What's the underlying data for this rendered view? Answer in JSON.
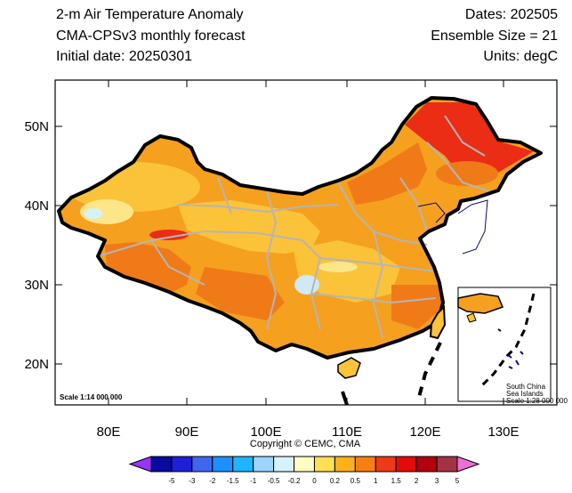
{
  "header": {
    "title": "2-m Air Temperature Anomaly",
    "subtitle": "CMA-CPSv3 monthly forecast",
    "initial_date": "Initial date: 20250301",
    "dates": "Dates: 202505",
    "ensemble": "Ensemble Size = 21",
    "units": "Units: degC"
  },
  "axes": {
    "lat_labels": [
      "50N",
      "40N",
      "30N",
      "20N"
    ],
    "lon_labels": [
      "80E",
      "90E",
      "100E",
      "110E",
      "120E",
      "130E"
    ]
  },
  "scale_main": "Scale 1:14 000 000",
  "inset": {
    "line1": "South China",
    "line2": "Sea Islands",
    "line3": "Scale 1:28 000 000"
  },
  "copyright": "Copyright © CEMC, CMA",
  "colorbar": {
    "levels": [
      "-5",
      "-3",
      "-2",
      "-1.5",
      "-1",
      "-0.5",
      "-0.2",
      "0",
      "0.2",
      "0.5",
      "1",
      "1.5",
      "2",
      "3",
      "5"
    ],
    "colors": [
      "#9933ff",
      "#0a0a9e",
      "#1f1fd6",
      "#4066f0",
      "#1e8fff",
      "#1eb4ff",
      "#9cd3ff",
      "#d6f2ff",
      "#fffcc4",
      "#fdde55",
      "#fbb11b",
      "#f67e12",
      "#ee3a16",
      "#e30b0b",
      "#b3000f",
      "#a33344",
      "#ee6fd6"
    ]
  },
  "colors": {
    "warm_base": "#f6a01f",
    "strong_warm": "#ee7a1a",
    "hot": "#ea2d14",
    "mild": "#fbd043",
    "cool": "#cfe9f9",
    "border": "#000000",
    "province_line": "#b5b5b5"
  }
}
